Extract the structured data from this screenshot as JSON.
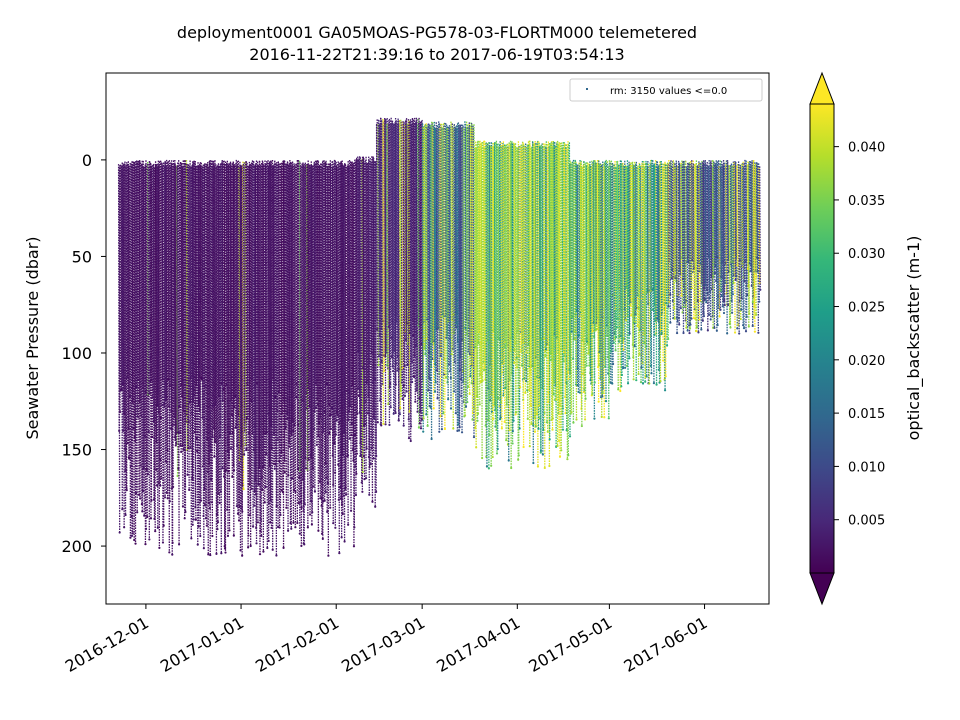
{
  "chart_data": {
    "type": "scatter",
    "title_line1": "deployment0001 GA05MOAS-PG578-03-FLORTM000 telemetered",
    "title_line2": "2016-11-22T21:39:16 to 2017-06-19T03:54:13",
    "xlabel": "",
    "ylabel": "Seawater Pressure (dbar)",
    "x_range": [
      "2016-11-22",
      "2017-06-19"
    ],
    "xlim": [
      "2016-11-18",
      "2017-06-22"
    ],
    "ylim": [
      230,
      -45
    ],
    "y_inverted": true,
    "x_ticks": [
      "2016-12-01",
      "2017-01-01",
      "2017-02-01",
      "2017-03-01",
      "2017-04-01",
      "2017-05-01",
      "2017-06-01"
    ],
    "y_ticks": [
      0,
      50,
      100,
      150,
      200
    ],
    "legend": {
      "label": "rm: 3150 values <=0.0",
      "placement": "upper right"
    },
    "colorbar": {
      "label": "optical_backscatter (m-1)",
      "range": [
        0.0,
        0.044
      ],
      "ticks": [
        "0.005",
        "0.010",
        "0.015",
        "0.020",
        "0.025",
        "0.030",
        "0.035",
        "0.040"
      ],
      "tick_values": [
        0.005,
        0.01,
        0.015,
        0.02,
        0.025,
        0.03,
        0.035,
        0.04
      ],
      "extend": "both",
      "colormap": "viridis",
      "colormap_stops": [
        "#440154",
        "#482878",
        "#3e4989",
        "#31688e",
        "#26828e",
        "#1f9e89",
        "#35b779",
        "#6ece58",
        "#b5de2b",
        "#fde725"
      ],
      "under_color": "#440154",
      "over_color": "#fde725"
    },
    "series_profile": [
      {
        "start": "2016-11-22",
        "end": "2017-02-07",
        "max_pressure": 205,
        "min_pressure": 0,
        "value_level": 0.003,
        "bright_fraction": 0.01
      },
      {
        "start": "2017-02-07",
        "end": "2017-02-14",
        "max_pressure": 180,
        "min_pressure": -2,
        "value_level": 0.004,
        "bright_fraction": 0.05
      },
      {
        "start": "2017-02-14",
        "end": "2017-03-01",
        "max_pressure": 148,
        "min_pressure": -22,
        "value_level": 0.006,
        "bright_fraction": 0.15
      },
      {
        "start": "2017-03-01",
        "end": "2017-03-18",
        "max_pressure": 145,
        "min_pressure": -20,
        "value_level": 0.02,
        "bright_fraction": 0.35
      },
      {
        "start": "2017-03-18",
        "end": "2017-04-18",
        "max_pressure": 160,
        "min_pressure": -10,
        "value_level": 0.038,
        "bright_fraction": 0.6
      },
      {
        "start": "2017-04-18",
        "end": "2017-05-01",
        "max_pressure": 138,
        "min_pressure": 0,
        "value_level": 0.035,
        "bright_fraction": 0.55
      },
      {
        "start": "2017-05-01",
        "end": "2017-05-20",
        "max_pressure": 120,
        "min_pressure": 0,
        "value_level": 0.03,
        "bright_fraction": 0.45
      },
      {
        "start": "2017-05-20",
        "end": "2017-06-19",
        "max_pressure": 90,
        "min_pressure": 0,
        "value_level": 0.015,
        "bright_fraction": 0.3
      }
    ]
  }
}
